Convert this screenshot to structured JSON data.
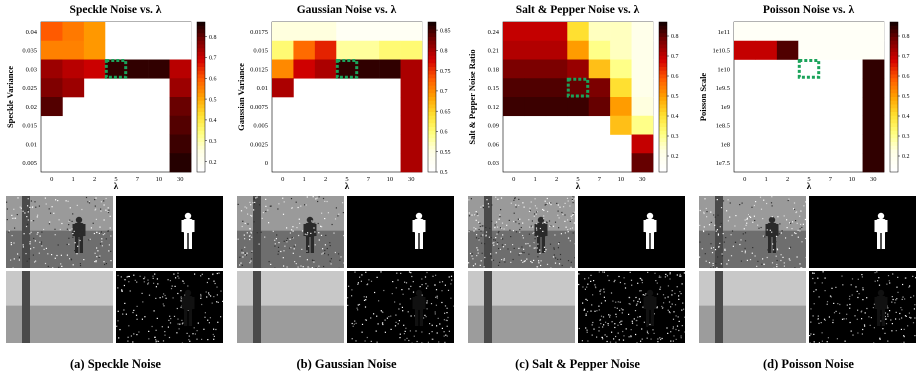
{
  "colorbar_colors": [
    "#1a0000",
    "#800000",
    "#d40000",
    "#ff5a00",
    "#ffa000",
    "#ffe030",
    "#ffff80",
    "#ffffe6",
    "#ffffff"
  ],
  "thumb_labels_note": "",
  "chart_data": [
    {
      "type": "heatmap",
      "title": "Speckle Noise vs. λ",
      "caption": "(a) Speckle Noise",
      "xlabel": "λ",
      "ylabel": "Speckle Variance",
      "x": [
        "0",
        "1",
        "2",
        "5",
        "7",
        "10",
        "30"
      ],
      "y": [
        "0.04",
        "0.035",
        "0.03",
        "0.025",
        "0.02",
        "0.015",
        "0.01",
        "0.005"
      ],
      "cbar": {
        "ticks": [
          "0.8",
          "0.7",
          "0.6",
          "0.5",
          "0.4",
          "0.3",
          "0.2"
        ],
        "range": [
          0.15,
          0.87
        ]
      },
      "values": [
        [
          0.6,
          0.56,
          0.52,
          0.12,
          0.12,
          0.12,
          0.12
        ],
        [
          0.55,
          0.55,
          0.52,
          0.15,
          0.15,
          0.15,
          0.15
        ],
        [
          0.75,
          0.72,
          0.7,
          0.85,
          0.85,
          0.85,
          0.72
        ],
        [
          0.78,
          0.75,
          null,
          null,
          null,
          null,
          0.75
        ],
        [
          0.82,
          null,
          null,
          null,
          null,
          null,
          0.8
        ],
        [
          null,
          null,
          null,
          null,
          null,
          null,
          0.82
        ],
        [
          null,
          null,
          null,
          null,
          null,
          null,
          0.84
        ],
        [
          null,
          null,
          null,
          null,
          null,
          null,
          0.86
        ]
      ],
      "highlight": {
        "x": "5",
        "y": "0.03"
      }
    },
    {
      "type": "heatmap",
      "title": "Gaussian Noise vs. λ",
      "caption": "(b) Gaussian Noise",
      "xlabel": "λ",
      "ylabel": "Gaussian Variance",
      "x": [
        "0",
        "1",
        "2",
        "5",
        "7",
        "10",
        "30"
      ],
      "y": [
        "0.0175",
        "0.015",
        "0.0125",
        "0.01",
        "0.0075",
        "0.005",
        "0.0025",
        "0"
      ],
      "cbar": {
        "ticks": [
          "0.85",
          "0.8",
          "0.75",
          "0.7",
          "0.65",
          "0.6",
          "0.55",
          "0.5"
        ],
        "range": [
          0.5,
          0.87
        ]
      },
      "values": [
        [
          0.55,
          0.55,
          0.55,
          0.52,
          0.52,
          0.52,
          0.52
        ],
        [
          0.6,
          0.72,
          0.76,
          0.58,
          0.58,
          0.6,
          0.6
        ],
        [
          0.7,
          0.78,
          0.8,
          0.86,
          0.86,
          0.86,
          0.8
        ],
        [
          0.8,
          null,
          null,
          null,
          null,
          null,
          0.8
        ],
        [
          null,
          null,
          null,
          null,
          null,
          null,
          0.8
        ],
        [
          null,
          null,
          null,
          null,
          null,
          null,
          0.8
        ],
        [
          null,
          null,
          null,
          null,
          null,
          null,
          0.8
        ],
        [
          null,
          null,
          null,
          null,
          null,
          null,
          0.8
        ]
      ],
      "highlight": {
        "x": "5",
        "y": "0.0125"
      }
    },
    {
      "type": "heatmap",
      "title": "Salt & Pepper Noise vs. λ",
      "caption": "(c) Salt & Pepper Noise",
      "xlabel": "λ",
      "ylabel": "Salt & Pepper Noise Ratio",
      "x": [
        "0",
        "1",
        "2",
        "5",
        "7",
        "10",
        "30"
      ],
      "y": [
        "0.24",
        "0.21",
        "0.18",
        "0.15",
        "0.12",
        "0.09",
        "0.06",
        "0.03"
      ],
      "cbar": {
        "ticks": [
          "0.8",
          "0.7",
          "0.6",
          "0.5",
          "0.4",
          "0.3",
          "0.2"
        ],
        "range": [
          0.12,
          0.87
        ]
      },
      "values": [
        [
          0.7,
          0.7,
          0.7,
          0.4,
          0.25,
          0.25,
          0.2
        ],
        [
          0.72,
          0.72,
          0.72,
          0.5,
          0.3,
          0.25,
          0.2
        ],
        [
          0.78,
          0.78,
          0.78,
          0.75,
          0.45,
          0.3,
          0.2
        ],
        [
          0.82,
          0.82,
          0.82,
          0.8,
          0.78,
          0.4,
          0.2
        ],
        [
          0.84,
          0.84,
          0.84,
          0.84,
          0.8,
          0.5,
          0.22
        ],
        [
          null,
          null,
          null,
          null,
          null,
          0.45,
          0.3
        ],
        [
          null,
          null,
          null,
          null,
          null,
          null,
          0.7
        ],
        [
          null,
          null,
          null,
          null,
          null,
          null,
          0.8
        ]
      ],
      "highlight": {
        "x": "5",
        "y": "0.15"
      }
    },
    {
      "type": "heatmap",
      "title": "Poisson Noise vs. λ",
      "caption": "(d) Poisson Noise",
      "xlabel": "λ",
      "ylabel": "Poisson Scale",
      "x": [
        "0",
        "1",
        "2",
        "5",
        "7",
        "10",
        "30"
      ],
      "y": [
        "1e11",
        "1e10.5",
        "1e10",
        "1e9.5",
        "1e9",
        "1e8.5",
        "1e8",
        "1e7.5"
      ],
      "cbar": {
        "ticks": [
          "0.8",
          "0.7",
          "0.6",
          "0.5",
          "0.4",
          "0.3",
          "0.2"
        ],
        "range": [
          0.12,
          0.87
        ]
      },
      "values": [
        [
          0.15,
          0.15,
          0.15,
          0.15,
          0.15,
          0.15,
          0.15
        ],
        [
          0.7,
          0.7,
          0.82,
          0.15,
          0.15,
          0.15,
          0.15
        ],
        [
          null,
          null,
          null,
          null,
          null,
          null,
          0.85
        ],
        [
          null,
          null,
          null,
          null,
          null,
          null,
          0.85
        ],
        [
          null,
          null,
          null,
          null,
          null,
          null,
          0.85
        ],
        [
          null,
          null,
          null,
          null,
          null,
          null,
          0.85
        ],
        [
          null,
          null,
          null,
          null,
          null,
          null,
          0.85
        ],
        [
          null,
          null,
          null,
          null,
          null,
          null,
          0.85
        ]
      ],
      "highlight": {
        "x": "5",
        "y": "1e10"
      }
    }
  ]
}
